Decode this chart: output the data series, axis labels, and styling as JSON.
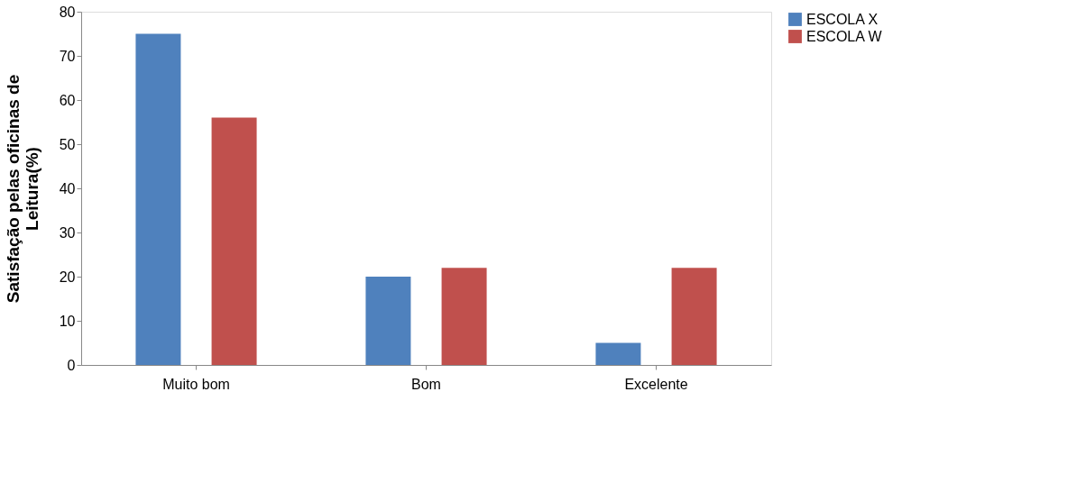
{
  "chart_data": {
    "type": "bar",
    "ylabel": "Satisfação pelas oficinas de Leitura(%)",
    "categories": [
      "Muito bom",
      "Bom",
      "Excelente"
    ],
    "series": [
      {
        "name": "ESCOLA X",
        "color": "#4f81bd",
        "values": [
          75,
          20,
          5
        ]
      },
      {
        "name": "ESCOLA W",
        "color": "#c0504d",
        "values": [
          56,
          22,
          22
        ]
      }
    ],
    "ylim": [
      0,
      80
    ],
    "yticks": [
      0,
      10,
      20,
      30,
      40,
      50,
      60,
      70,
      80
    ],
    "grid": false,
    "legend": "right"
  }
}
